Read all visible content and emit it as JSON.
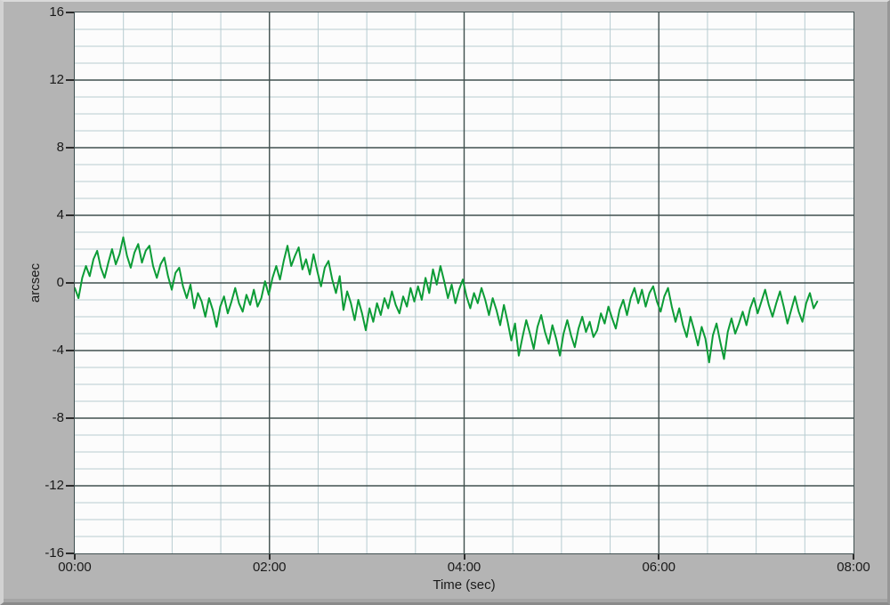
{
  "panel": {
    "name": "waveform-chart-panel"
  },
  "colors": {
    "panel_bg": "#b4b4b4",
    "plot_bg": "#fcfcfc",
    "grid_minor": "#b7ccd1",
    "grid_major": "#40504e",
    "plot_border": "#3f4f50",
    "line_green": "#0c9c36",
    "text": "#1a1a1a"
  },
  "chart_data": {
    "type": "line",
    "title": "",
    "xlabel": "Time (sec)",
    "ylabel": "arcsec",
    "xlim_sec": [
      0,
      480
    ],
    "ylim": [
      -16,
      16
    ],
    "grid": true,
    "x_ticks": [
      {
        "sec": 0,
        "label": "00:00"
      },
      {
        "sec": 120,
        "label": "02:00"
      },
      {
        "sec": 240,
        "label": "04:00"
      },
      {
        "sec": 360,
        "label": "06:00"
      },
      {
        "sec": 480,
        "label": "08:00"
      }
    ],
    "y_ticks": [
      16,
      12,
      8,
      4,
      0,
      -4,
      -8,
      -12,
      -16
    ],
    "y_major_step": 4,
    "y_minor_step": 1,
    "x_major_step_sec": 120,
    "x_minor_step_sec": 30,
    "series": [
      {
        "name": "plot-0",
        "color": "#0c9c36",
        "line_width": 2,
        "start_sec": 0,
        "sample_interval_sec": 2.3,
        "values": [
          -0.3,
          -0.9,
          0.3,
          1.0,
          0.4,
          1.4,
          1.9,
          0.9,
          0.3,
          1.2,
          2.0,
          1.1,
          1.7,
          2.7,
          1.6,
          0.9,
          1.8,
          2.3,
          1.2,
          1.9,
          2.2,
          1.0,
          0.3,
          1.1,
          1.5,
          0.4,
          -0.4,
          0.6,
          0.9,
          -0.2,
          -0.9,
          -0.1,
          -1.5,
          -0.6,
          -1.1,
          -2.0,
          -0.9,
          -1.6,
          -2.6,
          -1.4,
          -0.8,
          -1.8,
          -1.1,
          -0.3,
          -1.2,
          -1.7,
          -0.7,
          -1.3,
          -0.4,
          -1.4,
          -0.9,
          0.1,
          -0.7,
          0.3,
          1.0,
          0.2,
          1.3,
          2.2,
          1.0,
          1.6,
          2.1,
          0.8,
          1.4,
          0.5,
          1.7,
          0.7,
          -0.2,
          0.9,
          1.3,
          0.2,
          -0.6,
          0.4,
          -1.6,
          -0.5,
          -1.2,
          -2.2,
          -1.0,
          -1.8,
          -2.8,
          -1.5,
          -2.3,
          -1.2,
          -1.9,
          -0.9,
          -1.5,
          -0.5,
          -1.3,
          -1.8,
          -0.8,
          -1.4,
          -0.3,
          -1.1,
          -0.2,
          -1.0,
          0.3,
          -0.6,
          0.8,
          -0.1,
          1.0,
          0.1,
          -0.9,
          -0.1,
          -1.2,
          -0.4,
          0.2,
          -0.8,
          -1.5,
          -0.6,
          -1.2,
          -0.3,
          -1.0,
          -1.9,
          -0.9,
          -1.6,
          -2.5,
          -1.3,
          -2.3,
          -3.4,
          -2.4,
          -4.3,
          -3.2,
          -2.2,
          -3.0,
          -3.9,
          -2.6,
          -1.9,
          -2.9,
          -3.6,
          -2.5,
          -3.3,
          -4.3,
          -3.0,
          -2.2,
          -3.1,
          -3.8,
          -2.7,
          -2.0,
          -2.9,
          -2.3,
          -3.2,
          -2.8,
          -1.8,
          -2.4,
          -1.4,
          -2.1,
          -2.7,
          -1.6,
          -1.0,
          -1.9,
          -0.9,
          -0.3,
          -1.2,
          -0.4,
          -1.4,
          -0.6,
          -0.2,
          -1.1,
          -1.7,
          -0.8,
          -0.3,
          -1.4,
          -2.3,
          -1.5,
          -2.5,
          -3.2,
          -2.0,
          -2.8,
          -3.7,
          -2.6,
          -3.3,
          -4.7,
          -3.1,
          -2.4,
          -3.5,
          -4.5,
          -2.9,
          -2.1,
          -3.0,
          -2.4,
          -1.7,
          -2.5,
          -1.5,
          -0.9,
          -1.8,
          -1.1,
          -0.4,
          -1.3,
          -2.0,
          -1.2,
          -0.5,
          -1.4,
          -2.4,
          -1.6,
          -0.8,
          -1.7,
          -2.3,
          -1.2,
          -0.6,
          -1.5,
          -1.1
        ]
      }
    ]
  }
}
